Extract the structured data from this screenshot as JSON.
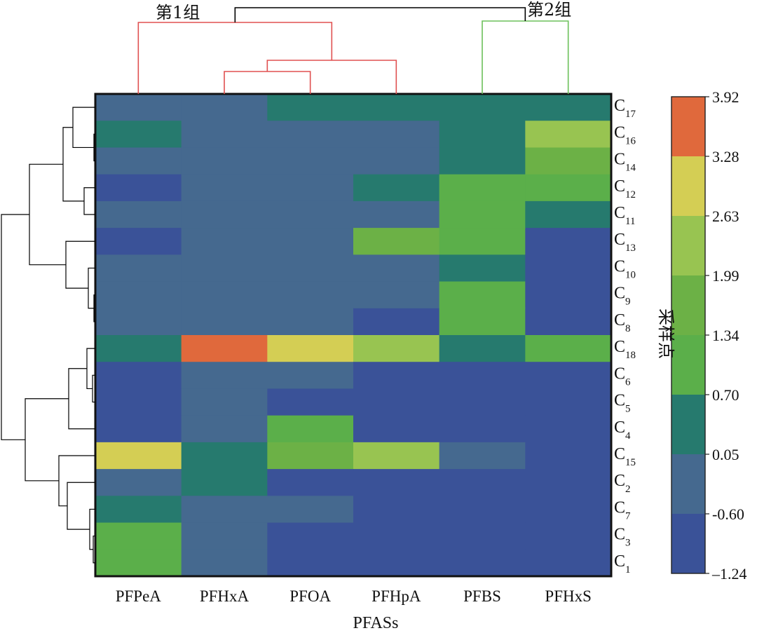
{
  "chart_data": {
    "type": "heatmap",
    "xlabel": "PFASs",
    "ylabel": "采样点",
    "columns": [
      "PFPeA",
      "PFHxA",
      "PFOA",
      "PFHpA",
      "PFBS",
      "PFHxS"
    ],
    "rows": [
      {
        "base": "C",
        "sub": "17",
        "values": [
          -0.4,
          -0.4,
          0.4,
          0.4,
          0.4,
          0.4
        ]
      },
      {
        "base": "C",
        "sub": "16",
        "values": [
          0.4,
          -0.4,
          -0.4,
          -0.4,
          0.4,
          2.3
        ]
      },
      {
        "base": "C",
        "sub": "14",
        "values": [
          -0.4,
          -0.4,
          -0.4,
          -0.4,
          0.4,
          1.6
        ]
      },
      {
        "base": "C",
        "sub": "12",
        "values": [
          -1.0,
          -0.4,
          -0.4,
          0.4,
          1.0,
          1.0
        ]
      },
      {
        "base": "C",
        "sub": "11",
        "values": [
          -0.4,
          -0.4,
          -0.4,
          -0.4,
          1.0,
          0.4
        ]
      },
      {
        "base": "C",
        "sub": "13",
        "values": [
          -1.0,
          -0.4,
          -0.4,
          1.6,
          1.0,
          -1.0
        ]
      },
      {
        "base": "C",
        "sub": "10",
        "values": [
          -0.4,
          -0.4,
          -0.4,
          -0.4,
          0.4,
          -1.0
        ]
      },
      {
        "base": "C",
        "sub": "9",
        "values": [
          -0.4,
          -0.4,
          -0.4,
          -0.4,
          1.0,
          -1.0
        ]
      },
      {
        "base": "C",
        "sub": "8",
        "values": [
          -0.4,
          -0.4,
          -0.4,
          -1.0,
          1.0,
          -1.0
        ]
      },
      {
        "base": "C",
        "sub": "18",
        "values": [
          0.4,
          3.6,
          3.0,
          2.3,
          0.4,
          1.0
        ]
      },
      {
        "base": "C",
        "sub": "6",
        "values": [
          -1.0,
          -0.4,
          -0.4,
          -1.0,
          -1.0,
          -1.0
        ]
      },
      {
        "base": "C",
        "sub": "5",
        "values": [
          -1.0,
          -0.4,
          -1.0,
          -1.0,
          -1.0,
          -1.0
        ]
      },
      {
        "base": "C",
        "sub": "4",
        "values": [
          -1.0,
          -0.4,
          1.0,
          -1.0,
          -1.0,
          -1.0
        ]
      },
      {
        "base": "C",
        "sub": "15",
        "values": [
          3.0,
          0.4,
          1.6,
          2.3,
          -0.4,
          -1.0
        ]
      },
      {
        "base": "C",
        "sub": "2",
        "values": [
          -0.4,
          0.4,
          -1.0,
          -1.0,
          -1.0,
          -1.0
        ]
      },
      {
        "base": "C",
        "sub": "7",
        "values": [
          0.4,
          -0.4,
          -0.4,
          -1.0,
          -1.0,
          -1.0
        ]
      },
      {
        "base": "C",
        "sub": "3",
        "values": [
          1.0,
          -0.4,
          -1.0,
          -1.0,
          -1.0,
          -1.0
        ]
      },
      {
        "base": "C",
        "sub": "1",
        "values": [
          1.0,
          -0.4,
          -1.0,
          -1.0,
          -1.0,
          -1.0
        ]
      }
    ],
    "colorbar": {
      "ticks": [
        "3.92",
        "3.28",
        "2.63",
        "1.99",
        "1.34",
        "0.70",
        "0.05",
        "-0.60",
        "–1.24"
      ],
      "bounds": [
        3.92,
        3.28,
        2.63,
        1.99,
        1.34,
        0.7,
        0.05,
        -0.6,
        -1.24
      ],
      "colors": [
        "#E0693C",
        "#D4CE54",
        "#98C451",
        "#6CB146",
        "#5BAF4A",
        "#267A6E",
        "#45698F",
        "#3A5298"
      ]
    },
    "dendrogram": {
      "groups": [
        {
          "label": "第1组",
          "color": "#E05050"
        },
        {
          "label": "第2组",
          "color": "#6CC05A"
        }
      ],
      "row_tree_color": "#000000",
      "root_color": "#000000"
    }
  }
}
